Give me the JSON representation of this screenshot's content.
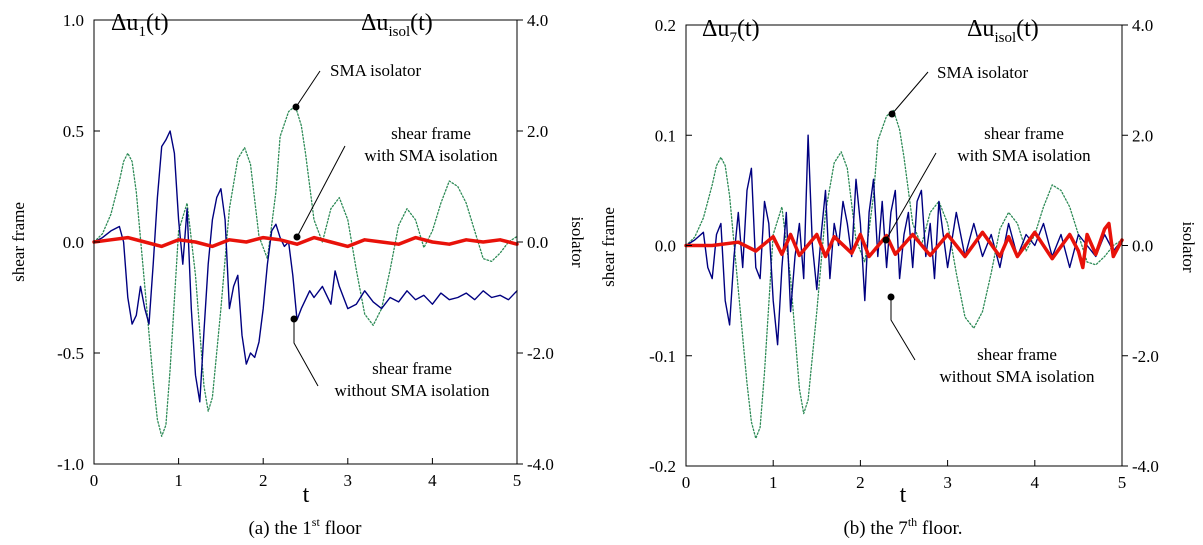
{
  "chart_data": [
    {
      "type": "line",
      "caption": {
        "prefix": "(a) the 1",
        "sup": "st",
        "suffix": " floor"
      },
      "xlabel": "t",
      "xlim": [
        0,
        5
      ],
      "x_ticks": [
        "0",
        "1",
        "2",
        "3",
        "4",
        "5"
      ],
      "left_axis": {
        "label": "shear frame",
        "symbol": "Δu",
        "sub": "1",
        "suffix": "(t)",
        "ylim": [
          -1.0,
          1.0
        ],
        "ticks": [
          "-1.0",
          "-0.5",
          "0.0",
          "0.5",
          "1.0"
        ]
      },
      "right_axis": {
        "label": "isolator",
        "symbol": "Δu",
        "sub": "isol",
        "suffix": "(t)",
        "ylim": [
          -4.0,
          4.0
        ],
        "ticks": [
          "-4.0",
          "-2.0",
          "0.0",
          "2.0",
          "4.0"
        ]
      },
      "annotations": [
        {
          "text": [
            "SMA isolator"
          ]
        },
        {
          "text": [
            "shear frame",
            "with SMA isolation"
          ]
        },
        {
          "text": [
            "shear frame",
            "without SMA isolation"
          ]
        }
      ],
      "series": [
        {
          "key": "isolator",
          "axis": "right",
          "color": "#2e8b57",
          "style": "dotted",
          "x": [
            0,
            0.1,
            0.2,
            0.3,
            0.35,
            0.4,
            0.45,
            0.5,
            0.6,
            0.7,
            0.75,
            0.8,
            0.85,
            0.9,
            1.0,
            1.1,
            1.2,
            1.3,
            1.35,
            1.4,
            1.5,
            1.6,
            1.7,
            1.78,
            1.85,
            1.95,
            2.05,
            2.15,
            2.2,
            2.3,
            2.38,
            2.45,
            2.5,
            2.6,
            2.7,
            2.8,
            2.9,
            3.0,
            3.1,
            3.2,
            3.3,
            3.4,
            3.5,
            3.6,
            3.7,
            3.8,
            3.9,
            4.0,
            4.1,
            4.2,
            4.3,
            4.4,
            4.5,
            4.6,
            4.7,
            4.8,
            4.9,
            5.0
          ],
          "y": [
            0,
            0.15,
            0.5,
            1.1,
            1.45,
            1.6,
            1.45,
            0.9,
            -0.8,
            -2.5,
            -3.2,
            -3.5,
            -3.3,
            -2.3,
            0.2,
            0.7,
            -0.6,
            -2.6,
            -3.05,
            -2.8,
            -1.2,
            0.6,
            1.5,
            1.7,
            1.4,
            0.1,
            -0.3,
            0.9,
            1.9,
            2.35,
            2.45,
            2.1,
            1.6,
            0.4,
            0,
            0.6,
            0.8,
            0.4,
            -0.5,
            -1.3,
            -1.5,
            -1.2,
            -0.5,
            0.3,
            0.6,
            0.4,
            -0.1,
            0.2,
            0.7,
            1.1,
            1.0,
            0.7,
            0.2,
            -0.3,
            -0.35,
            -0.2,
            0.0,
            0.1
          ]
        },
        {
          "key": "without",
          "axis": "left",
          "color": "#000080",
          "style": "solid",
          "x": [
            0,
            0.1,
            0.2,
            0.3,
            0.35,
            0.4,
            0.45,
            0.5,
            0.55,
            0.6,
            0.65,
            0.7,
            0.75,
            0.8,
            0.85,
            0.9,
            0.95,
            1.0,
            1.05,
            1.1,
            1.15,
            1.2,
            1.25,
            1.3,
            1.35,
            1.4,
            1.45,
            1.5,
            1.55,
            1.6,
            1.65,
            1.7,
            1.75,
            1.8,
            1.85,
            1.9,
            1.95,
            2.0,
            2.05,
            2.1,
            2.15,
            2.2,
            2.25,
            2.3,
            2.35,
            2.4,
            2.45,
            2.5,
            2.55,
            2.6,
            2.7,
            2.8,
            2.85,
            2.9,
            3.0,
            3.1,
            3.2,
            3.3,
            3.4,
            3.5,
            3.6,
            3.7,
            3.8,
            3.9,
            4.0,
            4.1,
            4.2,
            4.3,
            4.4,
            4.5,
            4.6,
            4.7,
            4.8,
            4.9,
            5.0
          ],
          "y": [
            0,
            0.02,
            0.05,
            0.07,
            0.0,
            -0.25,
            -0.37,
            -0.33,
            -0.2,
            -0.3,
            -0.37,
            -0.1,
            0.2,
            0.43,
            0.46,
            0.5,
            0.4,
            0.1,
            -0.1,
            0.15,
            -0.3,
            -0.6,
            -0.72,
            -0.4,
            -0.1,
            0.1,
            0.2,
            0.24,
            0.1,
            -0.3,
            -0.2,
            -0.15,
            -0.42,
            -0.55,
            -0.5,
            -0.52,
            -0.45,
            -0.3,
            -0.1,
            0.05,
            0.08,
            0.02,
            -0.02,
            0.0,
            -0.15,
            -0.35,
            -0.3,
            -0.26,
            -0.22,
            -0.25,
            -0.2,
            -0.28,
            -0.13,
            -0.2,
            -0.3,
            -0.28,
            -0.22,
            -0.27,
            -0.3,
            -0.25,
            -0.27,
            -0.22,
            -0.26,
            -0.24,
            -0.28,
            -0.23,
            -0.26,
            -0.25,
            -0.23,
            -0.26,
            -0.22,
            -0.25,
            -0.24,
            -0.26,
            -0.22
          ]
        },
        {
          "key": "with",
          "axis": "left",
          "color": "#e8120a",
          "style": "thick",
          "x": [
            0,
            0.2,
            0.4,
            0.6,
            0.8,
            1.0,
            1.2,
            1.4,
            1.6,
            1.8,
            2.0,
            2.2,
            2.4,
            2.6,
            2.8,
            3.0,
            3.2,
            3.4,
            3.6,
            3.8,
            4.0,
            4.2,
            4.4,
            4.6,
            4.8,
            5.0
          ],
          "y": [
            0,
            0.01,
            0.02,
            0.0,
            -0.02,
            0.01,
            0.0,
            -0.02,
            0.01,
            0.0,
            0.02,
            0.01,
            -0.01,
            0.02,
            0.0,
            -0.02,
            0.01,
            0.0,
            -0.01,
            0.02,
            0.0,
            -0.01,
            0.01,
            0.0,
            0.01,
            -0.01
          ]
        }
      ]
    },
    {
      "type": "line",
      "caption": {
        "prefix": "(b) the 7",
        "sup": "th",
        "suffix": " floor."
      },
      "xlabel": "t",
      "xlim": [
        0,
        5
      ],
      "x_ticks": [
        "0",
        "1",
        "2",
        "3",
        "4",
        "5"
      ],
      "left_axis": {
        "label": "shear frame",
        "symbol": "Δu",
        "sub": "7",
        "suffix": "(t)",
        "ylim": [
          -0.2,
          0.2
        ],
        "ticks": [
          "-0.2",
          "-0.1",
          "0.0",
          "0.1",
          "0.2"
        ]
      },
      "right_axis": {
        "label": "isolator",
        "symbol": "Δu",
        "sub": "isol",
        "suffix": "(t)",
        "ylim": [
          -4.0,
          4.0
        ],
        "ticks": [
          "-4.0",
          "-2.0",
          "0.0",
          "2.0",
          "4.0"
        ]
      },
      "annotations": [
        {
          "text": [
            "SMA isolator"
          ]
        },
        {
          "text": [
            "shear frame",
            "with SMA isolation"
          ]
        },
        {
          "text": [
            "shear frame",
            "without SMA isolation"
          ]
        }
      ],
      "series": [
        {
          "key": "isolator",
          "axis": "right",
          "color": "#2e8b57",
          "style": "dotted",
          "x": [
            0,
            0.1,
            0.2,
            0.3,
            0.35,
            0.4,
            0.45,
            0.5,
            0.6,
            0.7,
            0.75,
            0.8,
            0.85,
            0.9,
            1.0,
            1.1,
            1.2,
            1.3,
            1.35,
            1.4,
            1.5,
            1.6,
            1.7,
            1.78,
            1.85,
            1.95,
            2.05,
            2.15,
            2.2,
            2.3,
            2.38,
            2.45,
            2.5,
            2.6,
            2.7,
            2.8,
            2.9,
            3.0,
            3.1,
            3.2,
            3.3,
            3.4,
            3.5,
            3.6,
            3.7,
            3.8,
            3.9,
            4.0,
            4.1,
            4.2,
            4.3,
            4.4,
            4.5,
            4.6,
            4.7,
            4.8,
            4.9,
            5.0
          ],
          "y": [
            0,
            0.15,
            0.5,
            1.1,
            1.45,
            1.6,
            1.45,
            0.9,
            -0.8,
            -2.5,
            -3.2,
            -3.5,
            -3.3,
            -2.3,
            0.2,
            0.7,
            -0.6,
            -2.6,
            -3.05,
            -2.8,
            -1.2,
            0.6,
            1.5,
            1.7,
            1.4,
            0.1,
            -0.3,
            0.9,
            1.9,
            2.35,
            2.45,
            2.1,
            1.6,
            0.4,
            0,
            0.6,
            0.8,
            0.4,
            -0.5,
            -1.3,
            -1.5,
            -1.2,
            -0.5,
            0.3,
            0.6,
            0.4,
            -0.1,
            0.2,
            0.7,
            1.1,
            1.0,
            0.7,
            0.2,
            -0.3,
            -0.35,
            -0.2,
            0.0,
            0.1
          ]
        },
        {
          "key": "without",
          "axis": "left",
          "color": "#000080",
          "style": "solid",
          "x": [
            0,
            0.1,
            0.2,
            0.25,
            0.3,
            0.35,
            0.4,
            0.45,
            0.5,
            0.55,
            0.6,
            0.65,
            0.7,
            0.75,
            0.8,
            0.85,
            0.9,
            0.95,
            1.0,
            1.05,
            1.1,
            1.15,
            1.2,
            1.25,
            1.3,
            1.35,
            1.4,
            1.45,
            1.5,
            1.55,
            1.6,
            1.65,
            1.7,
            1.75,
            1.8,
            1.85,
            1.9,
            1.95,
            2.0,
            2.05,
            2.1,
            2.15,
            2.2,
            2.25,
            2.3,
            2.35,
            2.4,
            2.45,
            2.5,
            2.55,
            2.6,
            2.65,
            2.7,
            2.75,
            2.8,
            2.85,
            2.9,
            2.95,
            3.0,
            3.1,
            3.2,
            3.3,
            3.4,
            3.5,
            3.6,
            3.7,
            3.8,
            3.9,
            4.0,
            4.1,
            4.2,
            4.3,
            4.4,
            4.5,
            4.6,
            4.7,
            4.8,
            4.9,
            5.0
          ],
          "y": [
            0,
            0.005,
            0.012,
            -0.02,
            -0.03,
            0.01,
            0.02,
            -0.05,
            -0.072,
            -0.01,
            0.03,
            -0.02,
            0.05,
            0.07,
            -0.02,
            -0.03,
            0.04,
            0.02,
            -0.05,
            -0.09,
            -0.02,
            0.03,
            -0.06,
            -0.01,
            0.02,
            -0.03,
            0.1,
            0.0,
            -0.04,
            0.01,
            0.05,
            -0.03,
            0.02,
            0.0,
            0.04,
            0.02,
            -0.01,
            0.06,
            0.02,
            -0.05,
            0.03,
            0.06,
            -0.01,
            0.04,
            -0.02,
            0.03,
            0.05,
            -0.03,
            0.01,
            0.03,
            -0.02,
            0.04,
            0.05,
            -0.01,
            0.02,
            -0.03,
            0.04,
            0.01,
            -0.02,
            0.03,
            -0.01,
            0.02,
            -0.01,
            0.01,
            -0.02,
            0.02,
            -0.01,
            0.01,
            0.0,
            0.02,
            -0.01,
            0.01,
            -0.02,
            0.01,
            0.0,
            -0.01,
            0.01,
            -0.005,
            0.005
          ]
        },
        {
          "key": "with",
          "axis": "left",
          "color": "#e8120a",
          "style": "thick",
          "x": [
            0,
            0.3,
            0.6,
            0.8,
            1.0,
            1.1,
            1.2,
            1.3,
            1.5,
            1.6,
            1.7,
            1.9,
            2.0,
            2.1,
            2.3,
            2.4,
            2.6,
            2.8,
            3.0,
            3.2,
            3.4,
            3.6,
            3.7,
            3.8,
            4.0,
            4.2,
            4.4,
            4.5,
            4.55,
            4.6,
            4.7,
            4.8,
            4.85,
            4.9,
            5.0
          ],
          "y": [
            0,
            0.0,
            0.003,
            -0.005,
            0.008,
            -0.008,
            0.01,
            -0.009,
            0.01,
            -0.01,
            0.008,
            -0.007,
            0.01,
            -0.01,
            0.009,
            -0.008,
            0.01,
            -0.009,
            0.01,
            -0.01,
            0.012,
            -0.01,
            0.008,
            -0.01,
            0.012,
            -0.012,
            0.01,
            -0.005,
            -0.02,
            0.01,
            -0.008,
            0.015,
            0.02,
            -0.01,
            0.005
          ]
        }
      ]
    }
  ]
}
